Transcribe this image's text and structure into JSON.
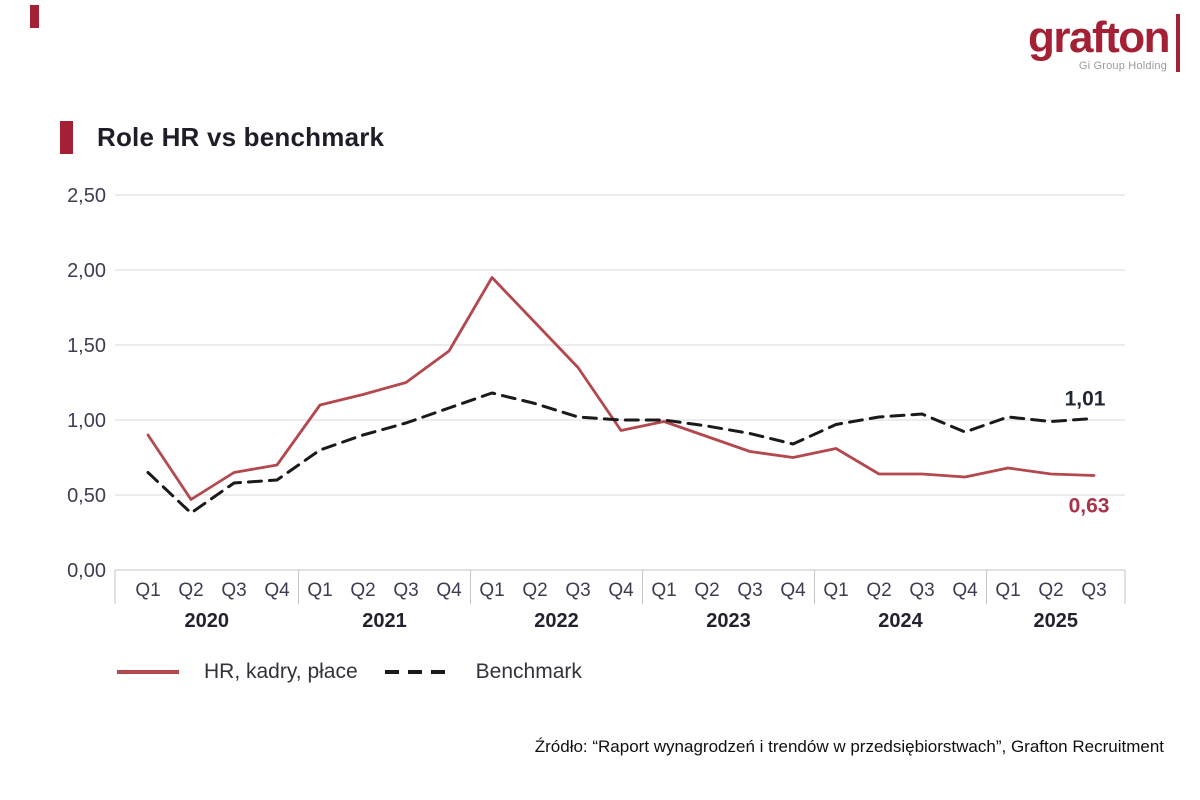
{
  "logo": {
    "text": "grafton",
    "subtext": "Gi Group Holding",
    "color": "#a32035"
  },
  "title": {
    "text": "Role HR vs benchmark"
  },
  "chart_data": {
    "type": "line",
    "title": "Role HR vs benchmark",
    "x_quarters": [
      "Q1",
      "Q2",
      "Q3",
      "Q4",
      "Q1",
      "Q2",
      "Q3",
      "Q4",
      "Q1",
      "Q2",
      "Q3",
      "Q4",
      "Q1",
      "Q2",
      "Q3",
      "Q4",
      "Q1",
      "Q2",
      "Q3",
      "Q4",
      "Q1",
      "Q2",
      "Q3"
    ],
    "years": [
      {
        "label": "2020",
        "quarters": 4
      },
      {
        "label": "2021",
        "quarters": 4
      },
      {
        "label": "2022",
        "quarters": 4
      },
      {
        "label": "2023",
        "quarters": 4
      },
      {
        "label": "2024",
        "quarters": 4
      },
      {
        "label": "2025",
        "quarters": 3
      }
    ],
    "series": [
      {
        "name": "HR, kadry, płace",
        "color": "#b3484e",
        "style": "solid",
        "values": [
          0.9,
          0.47,
          0.65,
          0.7,
          1.1,
          1.17,
          1.25,
          1.46,
          1.95,
          1.65,
          1.35,
          0.93,
          0.99,
          0.89,
          0.79,
          0.75,
          0.81,
          0.64,
          0.64,
          0.62,
          0.68,
          0.64,
          0.63
        ]
      },
      {
        "name": "Benchmark",
        "color": "#1a1a1a",
        "style": "dashed",
        "values": [
          0.65,
          0.38,
          0.58,
          0.6,
          0.8,
          0.9,
          0.98,
          1.08,
          1.18,
          1.11,
          1.02,
          1.0,
          1.0,
          0.96,
          0.91,
          0.84,
          0.97,
          1.02,
          1.04,
          0.92,
          1.02,
          0.99,
          1.01
        ]
      }
    ],
    "ylim": [
      0,
      2.5
    ],
    "yticks": [
      "0,00",
      "0,50",
      "1,00",
      "1,50",
      "2,00",
      "2,50"
    ],
    "grid": true,
    "legend_position": "bottom",
    "end_labels": [
      {
        "series": "Benchmark",
        "text": "1,01",
        "position": "above",
        "color": "#1f2533"
      },
      {
        "series": "HR, kadry, płace",
        "text": "0,63",
        "position": "below",
        "color": "#a93349"
      }
    ],
    "colors": {
      "gridline": "#d8d8d8",
      "axis_box": "#c6c6c6",
      "tick_text": "#3d3d52",
      "year_text": "#23232f"
    }
  },
  "legend": {
    "items": [
      {
        "label": "HR, kadry, płace",
        "color": "#b3484e",
        "style": "solid"
      },
      {
        "label": "Benchmark",
        "color": "#1a1a1a",
        "style": "dashed"
      }
    ]
  },
  "source": {
    "text": "Źródło: “Raport wynagrodzeń i trendów w przedsiębiorstwach”, Grafton Recruitment"
  }
}
